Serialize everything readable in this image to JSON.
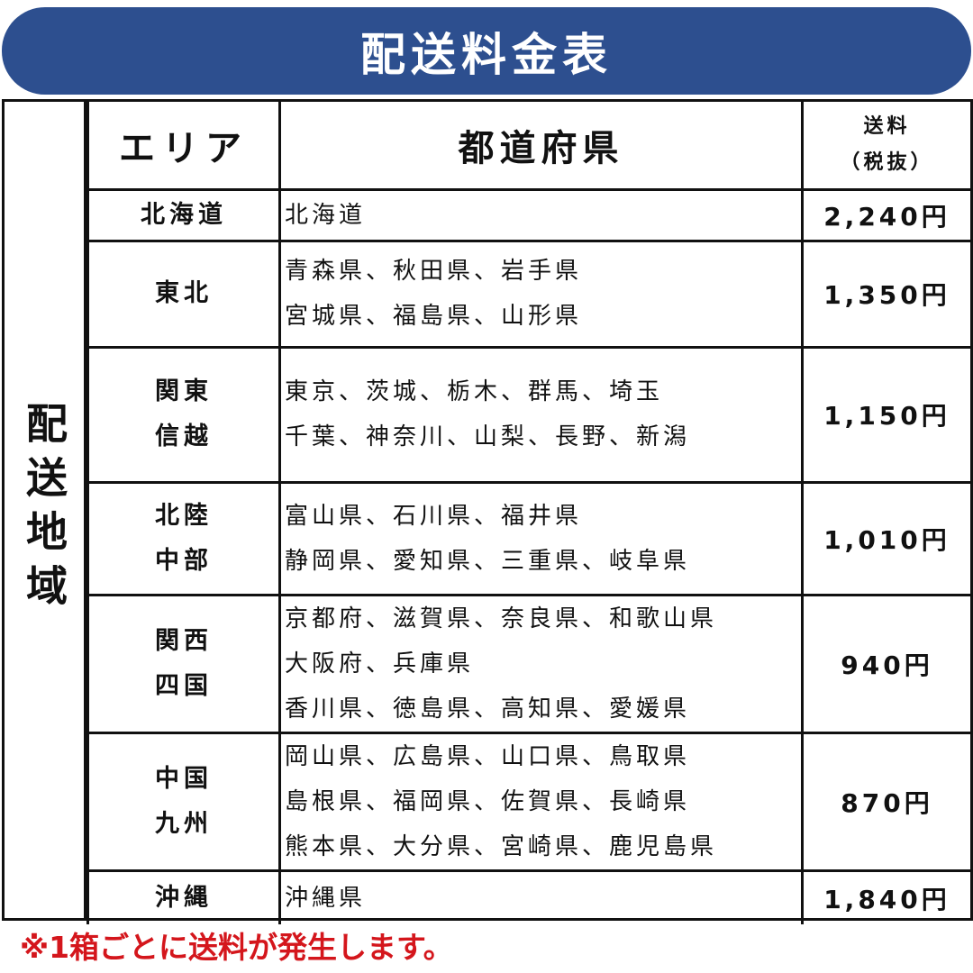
{
  "title": "配送料金表",
  "side_label": "配送地域",
  "headers": {
    "area": "エリア",
    "prefectures": "都道府県",
    "price_line1": "送料",
    "price_line2": "（税抜）"
  },
  "rows": [
    {
      "area": "北海道",
      "prefectures": "北海道",
      "price": "2,240円"
    },
    {
      "area": "東北",
      "prefectures": "青森県、秋田県、岩手県\n宮城県、福島県、山形県",
      "price": "1,350円"
    },
    {
      "area": "関東\n信越",
      "prefectures": "東京、茨城、栃木、群馬、埼玉\n千葉、神奈川、山梨、長野、新潟",
      "price": "1,150円"
    },
    {
      "area": "北陸\n中部",
      "prefectures": "富山県、石川県、福井県\n静岡県、愛知県、三重県、岐阜県",
      "price": "1,010円"
    },
    {
      "area": "関西\n四国",
      "prefectures": "京都府、滋賀県、奈良県、和歌山県\n大阪府、兵庫県\n香川県、徳島県、高知県、愛媛県",
      "price": "940円"
    },
    {
      "area": "中国\n九州",
      "prefectures": "岡山県、広島県、山口県、鳥取県\n島根県、福岡県、佐賀県、長崎県\n熊本県、大分県、宮崎県、鹿児島県",
      "price": "870円"
    },
    {
      "area": "沖縄",
      "prefectures": "沖縄県",
      "price": "1,840円"
    }
  ],
  "note": "※1箱ごとに送料が発生します。",
  "colors": {
    "title_bg": "#2d4f8f",
    "note": "#d4161c",
    "border": "#111111"
  }
}
